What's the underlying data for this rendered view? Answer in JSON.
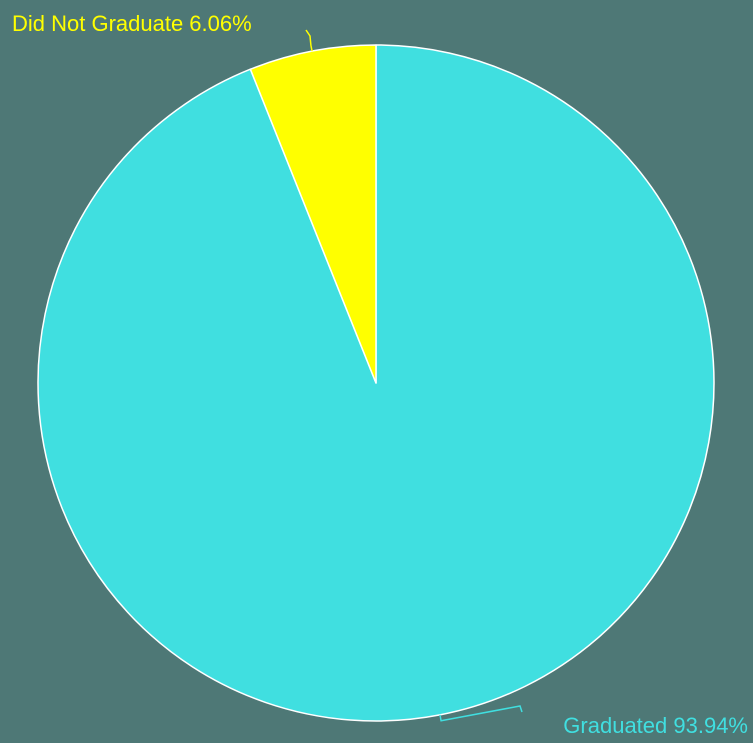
{
  "background_color": "#4e7876",
  "chart_data": {
    "type": "pie",
    "title": "",
    "slices": [
      {
        "label": "Graduated",
        "value": 93.94,
        "display": "Graduated 93.94%",
        "color": "#40dfe0"
      },
      {
        "label": "Did Not Graduate",
        "value": 6.06,
        "display": "Did Not Graduate 6.06%",
        "color": "#ffff00"
      }
    ],
    "start_angle": "12 o'clock",
    "direction": "clockwise",
    "labels": "outside with leader lines",
    "slice_border_color": "#ffffff"
  }
}
